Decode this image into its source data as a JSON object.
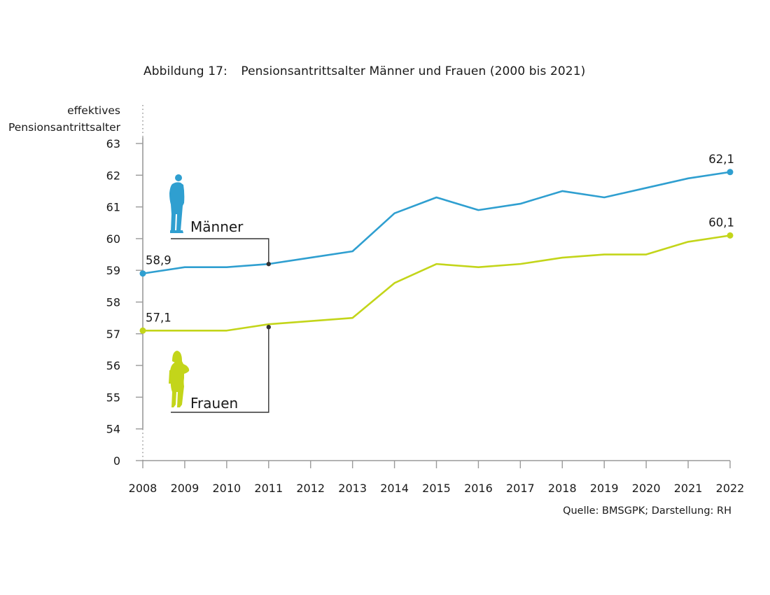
{
  "caption": {
    "number": "Abbildung 17:",
    "title": "Pensionsantrittsalter Männer und Frauen (2000 bis 2021)"
  },
  "y_axis_label_line1": "effektives",
  "y_axis_label_line2": "Pensionsantrittsalter",
  "source": "Quelle: BMSGPK; Darstellung: RH",
  "colors": {
    "maenner": "#2f9fd0",
    "frauen": "#c3d51a",
    "axis": "#9a9a9a",
    "leader": "#333333"
  },
  "chart_data": {
    "type": "line",
    "title": "Pensionsantrittsalter Männer und Frauen (2000 bis 2021)",
    "xlabel": "",
    "ylabel": "effektives Pensionsantrittsalter",
    "x": [
      "2008",
      "2009",
      "2010",
      "2011",
      "2012",
      "2013",
      "2014",
      "2015",
      "2016",
      "2017",
      "2018",
      "2019",
      "2020",
      "2021",
      "2022"
    ],
    "y_ticks": [
      "0",
      "54",
      "55",
      "56",
      "57",
      "58",
      "59",
      "60",
      "61",
      "62",
      "63"
    ],
    "ylim": [
      54,
      63
    ],
    "y_axis_break": "0 shown below 54 (broken axis)",
    "series": [
      {
        "name": "Männer",
        "color": "#2f9fd0",
        "values": [
          58.9,
          59.1,
          59.1,
          59.2,
          59.4,
          59.6,
          60.8,
          61.3,
          60.9,
          61.1,
          61.5,
          61.3,
          61.6,
          61.9,
          62.1
        ],
        "labels": [
          {
            "index": 0,
            "text": "58,9"
          },
          {
            "index": 14,
            "text": "62,1"
          }
        ]
      },
      {
        "name": "Frauen",
        "color": "#c3d51a",
        "values": [
          57.1,
          57.1,
          57.1,
          57.3,
          57.4,
          57.5,
          58.6,
          59.2,
          59.1,
          59.2,
          59.4,
          59.5,
          59.5,
          59.9,
          60.1
        ],
        "labels": [
          {
            "index": 0,
            "text": "57,1"
          },
          {
            "index": 14,
            "text": "60,1"
          }
        ]
      }
    ],
    "legend": [
      {
        "name": "Männer",
        "icon": "man-silhouette-icon",
        "anchor_index": 3
      },
      {
        "name": "Frauen",
        "icon": "woman-silhouette-icon",
        "anchor_index": 3
      }
    ]
  }
}
